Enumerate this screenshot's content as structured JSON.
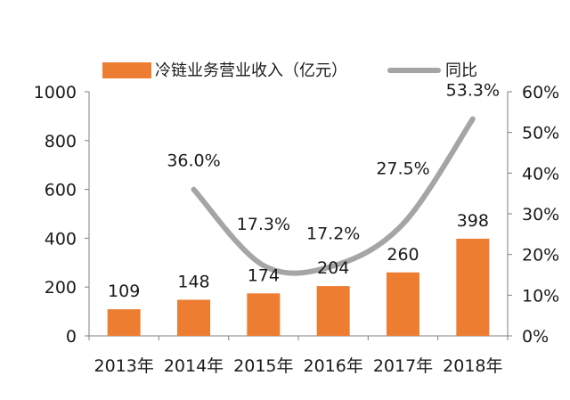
{
  "chart_data": {
    "type": "bar",
    "categories": [
      "2013年",
      "2014年",
      "2015年",
      "2016年",
      "2017年",
      "2018年"
    ],
    "series": [
      {
        "name": "冷链业务营业收入（亿元）",
        "kind": "bar",
        "axis": "left",
        "color": "#ED7D31",
        "values": [
          109,
          148,
          174,
          204,
          260,
          398
        ],
        "labels": [
          "109",
          "148",
          "174",
          "204",
          "260",
          "398"
        ]
      },
      {
        "name": "同比",
        "kind": "line",
        "smooth": true,
        "axis": "right",
        "color": "#A5A5A5",
        "values": [
          null,
          36.0,
          17.3,
          17.2,
          27.5,
          53.3
        ],
        "labels": [
          "",
          "36.0%",
          "17.3%",
          "17.2%",
          "27.5%",
          "53.3%"
        ]
      }
    ],
    "ylim": [
      0,
      1000
    ],
    "y_ticks": [
      0,
      200,
      400,
      600,
      800,
      1000
    ],
    "y2lim": [
      0,
      60
    ],
    "y2_ticks": [
      "0%",
      "10%",
      "20%",
      "30%",
      "40%",
      "50%",
      "60%"
    ],
    "legend": "top",
    "grid": false
  }
}
